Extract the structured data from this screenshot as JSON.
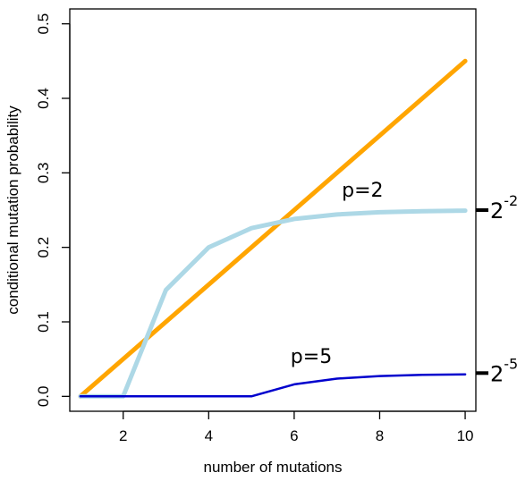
{
  "chart_data": {
    "type": "line",
    "title": "",
    "xlabel": "number of mutations",
    "ylabel": "conditional mutation probability",
    "xlim": [
      0.75,
      10.25
    ],
    "ylim": [
      -0.02,
      0.52
    ],
    "xticks": [
      2,
      4,
      6,
      8,
      10
    ],
    "yticks": [
      0.0,
      0.1,
      0.2,
      0.3,
      0.4,
      0.5
    ],
    "xtick_labels": [
      "2",
      "4",
      "6",
      "8",
      "10"
    ],
    "ytick_labels": [
      "0.0",
      "0.1",
      "0.2",
      "0.3",
      "0.4",
      "0.5"
    ],
    "grid": false,
    "series": [
      {
        "color": "#FFA500",
        "x": [
          1,
          10
        ],
        "y": [
          0.0,
          0.45
        ]
      },
      {
        "color": "#ADD8E6",
        "x": [
          1,
          2,
          3,
          4,
          5,
          6,
          7,
          8,
          9,
          10
        ],
        "y": [
          0.0,
          0.0,
          0.1429,
          0.2,
          0.2258,
          0.2381,
          0.2441,
          0.2471,
          0.2485,
          0.2493
        ]
      },
      {
        "color": "#0000CD",
        "x": [
          1,
          2,
          3,
          4,
          5,
          6,
          7,
          8,
          9,
          10
        ],
        "y": [
          0.0,
          0.0,
          0.0,
          0.0,
          0.0,
          0.0161,
          0.0238,
          0.0273,
          0.0289,
          0.0296
        ]
      }
    ],
    "annotations": [
      {
        "text": "p=2",
        "x": 7.6,
        "y": 0.268
      },
      {
        "text": "p=5",
        "x": 6.4,
        "y": 0.045
      }
    ],
    "right_marks": [
      {
        "base": "2",
        "exp": "-2",
        "y": 0.25
      },
      {
        "base": "2",
        "exp": "-5",
        "y": 0.03125
      }
    ]
  }
}
